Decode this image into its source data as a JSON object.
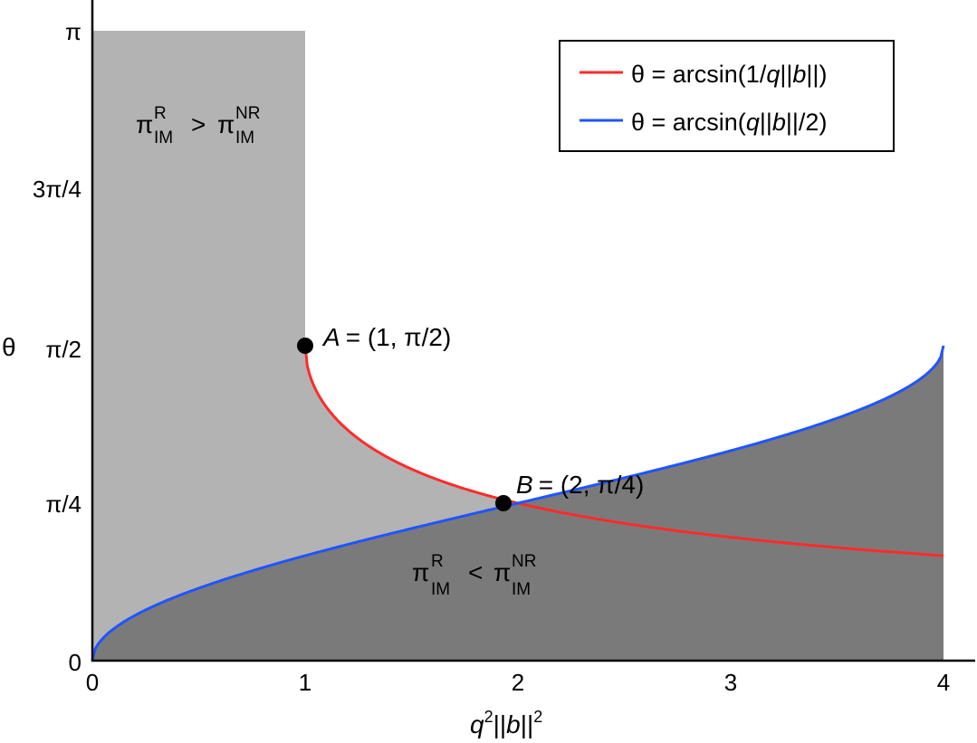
{
  "chart_data": {
    "type": "line",
    "xlabel": "q^2||b||^2",
    "ylabel": "θ",
    "xlim": [
      0,
      4
    ],
    "ylim": [
      0,
      3.14159
    ],
    "x_ticks": [
      {
        "value": 0,
        "label": "0"
      },
      {
        "value": 1,
        "label": "1"
      },
      {
        "value": 2,
        "label": "2"
      },
      {
        "value": 3,
        "label": "3"
      },
      {
        "value": 4,
        "label": "4"
      }
    ],
    "y_ticks": [
      {
        "value": 0,
        "label": "0"
      },
      {
        "value": 0.7854,
        "label": "π/4"
      },
      {
        "value": 1.5708,
        "label": "π/2"
      },
      {
        "value": 2.3562,
        "label": "3π/4"
      },
      {
        "value": 3.14159,
        "label": "π"
      }
    ],
    "series": [
      {
        "name": "θ = arcsin(1/q||b||)",
        "color": "#ff2a2a",
        "formula": "arcsin(1/sqrt(x))",
        "x_range": [
          1,
          4
        ]
      },
      {
        "name": "θ = arcsin(q||b||/2)",
        "color": "#1f55ff",
        "formula": "arcsin(sqrt(x)/2)",
        "x_range": [
          0,
          4
        ]
      }
    ],
    "points": [
      {
        "name": "A",
        "x": 1,
        "y": 1.5708,
        "label": "= (1, π/2)"
      },
      {
        "name": "B",
        "x": 2,
        "y": 0.7854,
        "label": "= (2, π/4)"
      }
    ],
    "regions": [
      {
        "label_main": "π",
        "sup1": "R",
        "sub1": "IM",
        "relation": ">",
        "sup2": "NR",
        "sub2": "IM",
        "color": "#b3b3b3"
      },
      {
        "label_main": "π",
        "sup1": "R",
        "sub1": "IM",
        "relation": "<",
        "sup2": "NR",
        "sub2": "IM",
        "color": "#7a7a7a"
      }
    ],
    "legend_position": "top-right",
    "grid": false
  }
}
